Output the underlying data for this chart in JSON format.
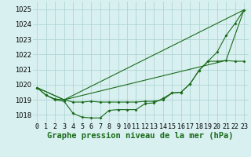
{
  "title": "Graphe pression niveau de la mer (hPa)",
  "xlabel_ticks": [
    "0",
    "1",
    "2",
    "3",
    "4",
    "5",
    "6",
    "7",
    "8",
    "9",
    "10",
    "11",
    "12",
    "13",
    "14",
    "15",
    "16",
    "17",
    "18",
    "19",
    "20",
    "21",
    "22",
    "23"
  ],
  "xlim": [
    -0.5,
    23.5
  ],
  "ylim": [
    1017.5,
    1025.5
  ],
  "yticks": [
    1018,
    1019,
    1020,
    1021,
    1022,
    1023,
    1024,
    1025
  ],
  "background_color": "#d8f0f0",
  "grid_color": "#aacfcf",
  "line_color": "#1a6b1a",
  "title_fontsize": 7.5,
  "tick_fontsize": 6,
  "series1_x": [
    0,
    1,
    2,
    3,
    4,
    5,
    6,
    7,
    8,
    9,
    10,
    11,
    12,
    13,
    14,
    15,
    16,
    17,
    18,
    19,
    20,
    21,
    22,
    23
  ],
  "series1_y": [
    1019.8,
    1019.3,
    1019.0,
    1018.9,
    1018.1,
    1017.85,
    1017.8,
    1017.8,
    1018.3,
    1018.35,
    1018.35,
    1018.35,
    1018.75,
    1018.8,
    1019.1,
    1019.45,
    1019.5,
    1020.05,
    1020.95,
    1021.55,
    1022.15,
    1023.25,
    1024.05,
    1024.95
  ],
  "series2_x": [
    0,
    1,
    2,
    3,
    4,
    5,
    6,
    7,
    8,
    9,
    10,
    11,
    12,
    13,
    14,
    15,
    16,
    17,
    18,
    19,
    20,
    21,
    22,
    23
  ],
  "series2_y": [
    1019.8,
    1019.3,
    1019.05,
    1019.0,
    1018.85,
    1018.85,
    1018.9,
    1018.85,
    1018.85,
    1018.85,
    1018.85,
    1018.85,
    1018.9,
    1018.9,
    1019.0,
    1019.45,
    1019.5,
    1020.05,
    1020.95,
    1021.55,
    1021.55,
    1021.6,
    1021.55,
    1021.55
  ],
  "series3_x": [
    0,
    3,
    23
  ],
  "series3_y": [
    1019.8,
    1019.0,
    1024.95
  ],
  "series4_x": [
    0,
    3,
    21,
    23
  ],
  "series4_y": [
    1019.8,
    1019.0,
    1021.6,
    1024.95
  ]
}
